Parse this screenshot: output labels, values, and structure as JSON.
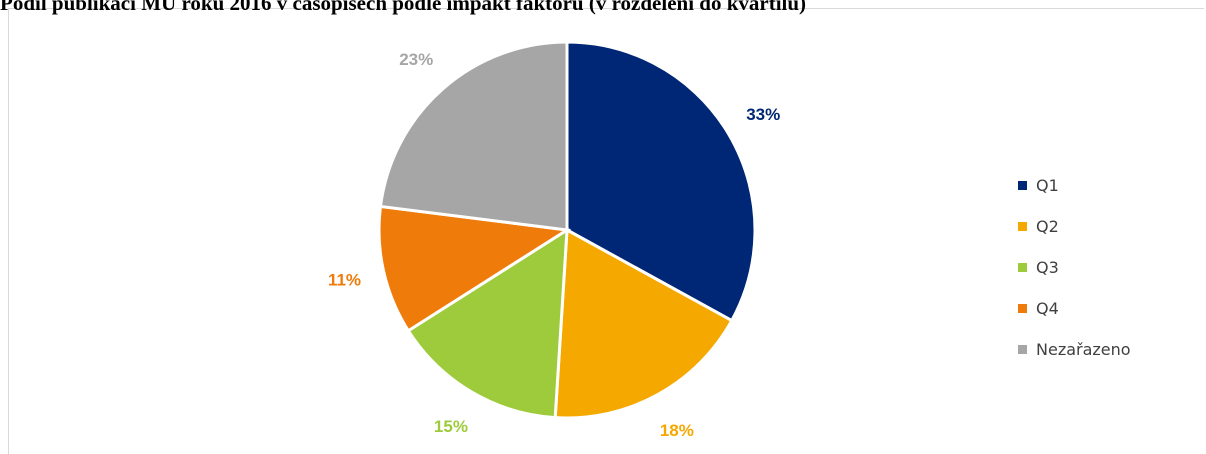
{
  "chart_data": {
    "type": "pie",
    "title": "Podíl publikací MU roku 2016 v časopisech podle impakt faktoru (v rozdělení do kvartilů)",
    "categories": [
      "Q1",
      "Q2",
      "Q3",
      "Q4",
      "Nezařazeno"
    ],
    "values": [
      33,
      18,
      15,
      11,
      23
    ],
    "labels": [
      "33%",
      "18%",
      "15%",
      "11%",
      "23%"
    ],
    "colors": [
      "#002776",
      "#f5a800",
      "#9dcb3b",
      "#ef7b0a",
      "#a6a6a6"
    ],
    "legend_position": "right"
  }
}
